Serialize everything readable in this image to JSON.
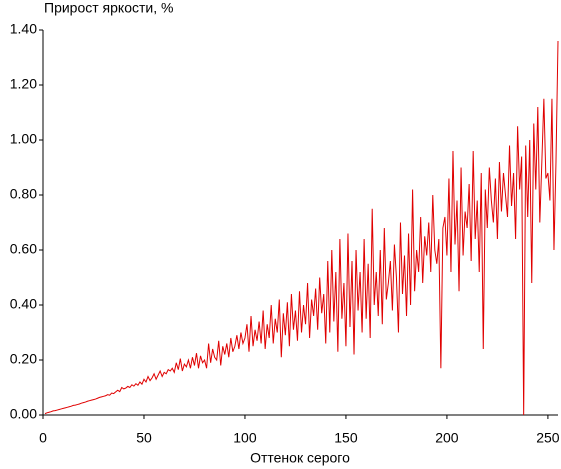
{
  "chart_data": {
    "type": "line",
    "title": "Прирост яркости, %",
    "x_label": "Оттенок серого",
    "color": "#e00000",
    "grid": false,
    "xlim": [
      0,
      255
    ],
    "ylim": [
      0,
      1.4
    ],
    "xticks": [
      0,
      50,
      100,
      150,
      200,
      250
    ],
    "yticks": [
      {
        "value": 0,
        "label": "0.00"
      },
      {
        "value": 0.2,
        "label": "0.20"
      },
      {
        "value": 0.4,
        "label": "0.40"
      },
      {
        "value": 0.6,
        "label": "0.60"
      },
      {
        "value": 0.8,
        "label": "0.80"
      },
      {
        "value": 1.0,
        "label": "1.00"
      },
      {
        "value": 1.2,
        "label": "1.20"
      },
      {
        "value": 1.4,
        "label": "1.40"
      }
    ],
    "x": [
      1,
      2,
      3,
      4,
      5,
      6,
      7,
      8,
      9,
      10,
      11,
      12,
      13,
      14,
      15,
      16,
      17,
      18,
      19,
      20,
      21,
      22,
      23,
      24,
      25,
      26,
      27,
      28,
      29,
      30,
      31,
      32,
      33,
      34,
      35,
      36,
      37,
      38,
      39,
      40,
      41,
      42,
      43,
      44,
      45,
      46,
      47,
      48,
      49,
      50,
      51,
      52,
      53,
      54,
      55,
      56,
      57,
      58,
      59,
      60,
      61,
      62,
      63,
      64,
      65,
      66,
      67,
      68,
      69,
      70,
      71,
      72,
      73,
      74,
      75,
      76,
      77,
      78,
      79,
      80,
      81,
      82,
      83,
      84,
      85,
      86,
      87,
      88,
      89,
      90,
      91,
      92,
      93,
      94,
      95,
      96,
      97,
      98,
      99,
      100,
      101,
      102,
      103,
      104,
      105,
      106,
      107,
      108,
      109,
      110,
      111,
      112,
      113,
      114,
      115,
      116,
      117,
      118,
      119,
      120,
      121,
      122,
      123,
      124,
      125,
      126,
      127,
      128,
      129,
      130,
      131,
      132,
      133,
      134,
      135,
      136,
      137,
      138,
      139,
      140,
      141,
      142,
      143,
      144,
      145,
      146,
      147,
      148,
      149,
      150,
      151,
      152,
      153,
      154,
      155,
      156,
      157,
      158,
      159,
      160,
      161,
      162,
      163,
      164,
      165,
      166,
      167,
      168,
      169,
      170,
      171,
      172,
      173,
      174,
      175,
      176,
      177,
      178,
      179,
      180,
      181,
      182,
      183,
      184,
      185,
      186,
      187,
      188,
      189,
      190,
      191,
      192,
      193,
      194,
      195,
      196,
      197,
      198,
      199,
      200,
      201,
      202,
      203,
      204,
      205,
      206,
      207,
      208,
      209,
      210,
      211,
      212,
      213,
      214,
      215,
      216,
      217,
      218,
      219,
      220,
      221,
      222,
      223,
      224,
      225,
      226,
      227,
      228,
      229,
      230,
      231,
      232,
      233,
      234,
      235,
      236,
      237,
      238,
      239,
      240,
      241,
      242,
      243,
      244,
      245,
      246,
      247,
      248,
      249,
      250,
      251,
      252,
      253,
      254,
      255
    ],
    "values": [
      0.005,
      0.008,
      0.01,
      0.012,
      0.015,
      0.016,
      0.018,
      0.02,
      0.022,
      0.024,
      0.026,
      0.028,
      0.03,
      0.032,
      0.035,
      0.036,
      0.038,
      0.04,
      0.043,
      0.045,
      0.047,
      0.05,
      0.052,
      0.054,
      0.056,
      0.058,
      0.061,
      0.064,
      0.066,
      0.068,
      0.07,
      0.074,
      0.072,
      0.08,
      0.078,
      0.084,
      0.09,
      0.085,
      0.1,
      0.095,
      0.098,
      0.104,
      0.1,
      0.11,
      0.105,
      0.114,
      0.108,
      0.12,
      0.112,
      0.13,
      0.12,
      0.14,
      0.125,
      0.135,
      0.15,
      0.13,
      0.145,
      0.16,
      0.14,
      0.155,
      0.15,
      0.165,
      0.16,
      0.17,
      0.155,
      0.19,
      0.165,
      0.205,
      0.16,
      0.185,
      0.175,
      0.2,
      0.17,
      0.21,
      0.18,
      0.225,
      0.17,
      0.215,
      0.19,
      0.2,
      0.17,
      0.26,
      0.19,
      0.24,
      0.21,
      0.2,
      0.27,
      0.18,
      0.25,
      0.22,
      0.26,
      0.21,
      0.28,
      0.23,
      0.25,
      0.29,
      0.24,
      0.3,
      0.26,
      0.28,
      0.33,
      0.23,
      0.36,
      0.25,
      0.31,
      0.27,
      0.34,
      0.26,
      0.38,
      0.24,
      0.33,
      0.28,
      0.4,
      0.26,
      0.35,
      0.3,
      0.42,
      0.21,
      0.37,
      0.29,
      0.41,
      0.25,
      0.44,
      0.31,
      0.38,
      0.27,
      0.45,
      0.3,
      0.4,
      0.33,
      0.48,
      0.28,
      0.42,
      0.36,
      0.46,
      0.31,
      0.5,
      0.37,
      0.44,
      0.26,
      0.56,
      0.3,
      0.6,
      0.34,
      0.52,
      0.23,
      0.64,
      0.35,
      0.48,
      0.25,
      0.66,
      0.32,
      0.56,
      0.22,
      0.6,
      0.38,
      0.52,
      0.3,
      0.64,
      0.35,
      0.55,
      0.28,
      0.75,
      0.4,
      0.52,
      0.36,
      0.6,
      0.33,
      0.68,
      0.42,
      0.48,
      0.56,
      0.38,
      0.62,
      0.5,
      0.3,
      0.7,
      0.44,
      0.58,
      0.36,
      0.66,
      0.4,
      0.82,
      0.45,
      0.6,
      0.52,
      0.72,
      0.48,
      0.65,
      0.58,
      0.7,
      0.52,
      0.8,
      0.6,
      0.55,
      0.64,
      0.17,
      0.68,
      0.72,
      0.58,
      0.86,
      0.52,
      0.96,
      0.62,
      0.78,
      0.45,
      0.9,
      0.58,
      0.74,
      0.68,
      0.84,
      0.56,
      0.96,
      0.64,
      0.78,
      0.52,
      0.88,
      0.24,
      0.82,
      0.68,
      0.9,
      0.78,
      0.7,
      0.86,
      0.64,
      0.92,
      0.74,
      0.88,
      0.8,
      0.72,
      0.98,
      0.76,
      0.88,
      0.64,
      1.05,
      0.82,
      0.94,
      0.0,
      0.98,
      0.72,
      1.0,
      0.48,
      1.06,
      0.82,
      1.12,
      0.7,
      0.92,
      1.15,
      0.86,
      0.88,
      0.78,
      1.15,
      0.6,
      0.92,
      1.36
    ]
  }
}
